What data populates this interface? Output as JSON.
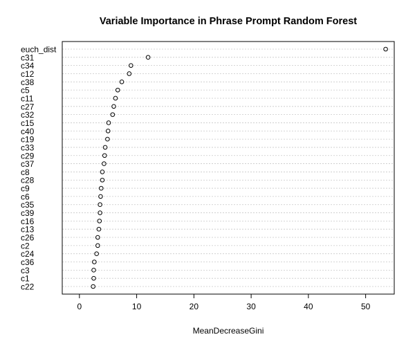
{
  "chart_data": {
    "type": "scatter",
    "title": "Variable Importance in Phrase Prompt Random Forest",
    "xlabel": "MeanDecreaseGini",
    "ylabel": "",
    "xlim": [
      -3,
      55
    ],
    "xticks": [
      0,
      10,
      20,
      30,
      40,
      50
    ],
    "grid": "dotted horizontal guide line per variable",
    "variables": [
      "euch_dist",
      "c31",
      "c34",
      "c12",
      "c38",
      "c5",
      "c11",
      "c27",
      "c32",
      "c15",
      "c40",
      "c19",
      "c33",
      "c29",
      "c37",
      "c8",
      "c28",
      "c9",
      "c6",
      "c35",
      "c39",
      "c16",
      "c13",
      "c26",
      "c2",
      "c24",
      "c36",
      "c3",
      "c1",
      "c22"
    ],
    "values": [
      53.5,
      12.0,
      9.0,
      8.7,
      7.4,
      6.7,
      6.3,
      6.0,
      5.8,
      5.1,
      5.0,
      4.9,
      4.5,
      4.4,
      4.3,
      4.0,
      4.0,
      3.8,
      3.7,
      3.6,
      3.6,
      3.5,
      3.4,
      3.2,
      3.2,
      3.0,
      2.6,
      2.5,
      2.5,
      2.4
    ]
  }
}
